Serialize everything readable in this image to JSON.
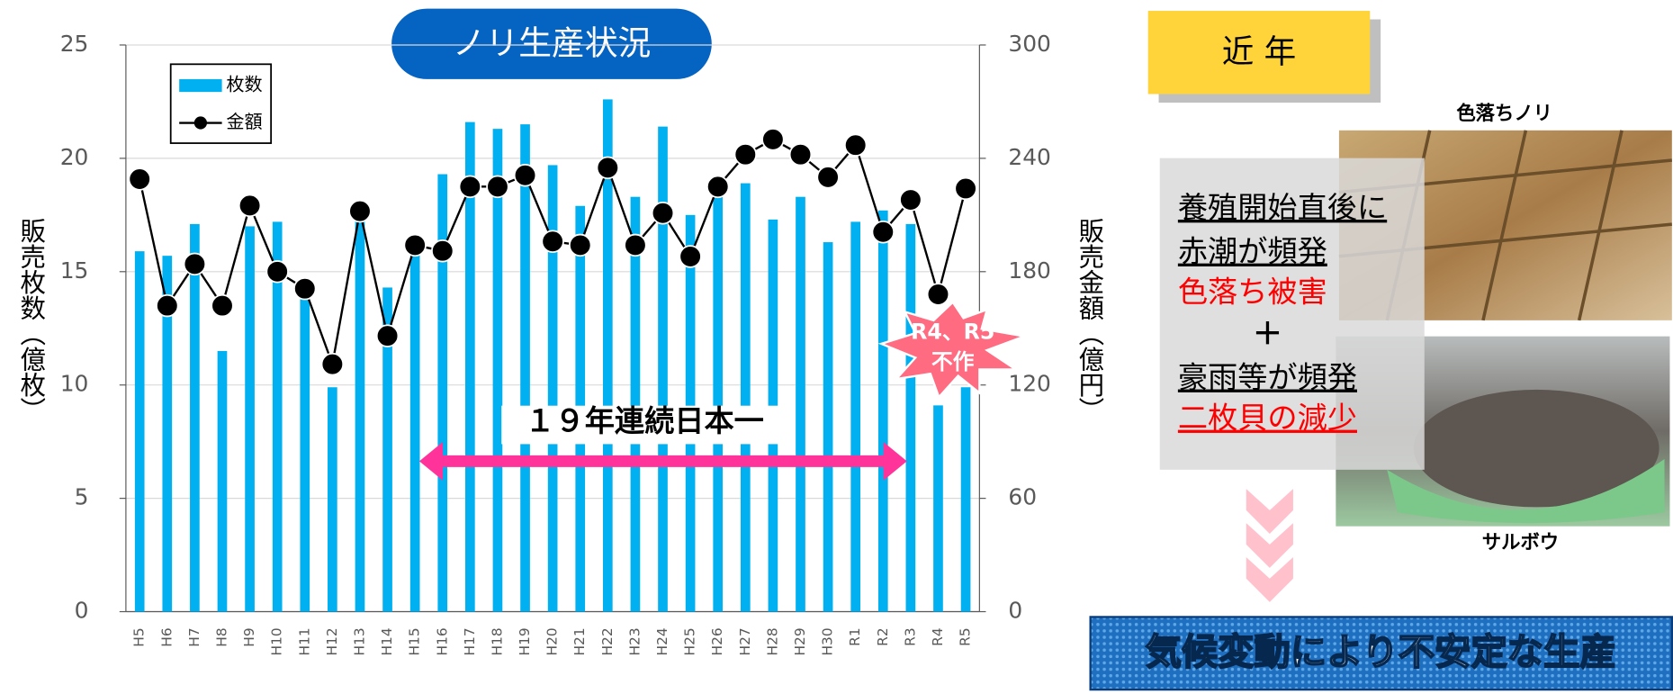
{
  "chart_data": {
    "type": "bar-line",
    "title": "ノリ生産状況",
    "y_label": "販売枚数（億枚）",
    "y2_label": "販売金額（億円）",
    "categories": [
      "H5",
      "H6",
      "H7",
      "H8",
      "H9",
      "H10",
      "H11",
      "H12",
      "H13",
      "H14",
      "H15",
      "H16",
      "H17",
      "H18",
      "H19",
      "H20",
      "H21",
      "H22",
      "H23",
      "H24",
      "H25",
      "H26",
      "H27",
      "H28",
      "H29",
      "H30",
      "R1",
      "R2",
      "R3",
      "R4",
      "R5"
    ],
    "series": [
      {
        "name": "枚数",
        "type": "bar",
        "color": "#00b0f0",
        "axis": "y",
        "values": [
          15.9,
          15.7,
          17.1,
          11.5,
          17.0,
          17.2,
          14.3,
          9.9,
          17.3,
          14.3,
          15.8,
          19.3,
          21.6,
          21.3,
          21.5,
          19.7,
          17.9,
          22.6,
          18.3,
          21.4,
          17.5,
          18.4,
          18.9,
          17.3,
          18.3,
          16.3,
          17.2,
          17.7,
          17.1,
          9.1,
          9.9
        ]
      },
      {
        "name": "金額",
        "type": "line",
        "color": "#000000",
        "axis": "y2",
        "values": [
          229,
          162,
          184,
          162,
          215,
          180,
          171,
          131,
          212,
          146,
          194,
          191,
          225,
          225,
          231,
          196,
          194,
          235,
          194,
          211,
          188,
          225,
          242,
          250,
          242,
          230,
          247,
          201,
          218,
          168,
          224
        ]
      }
    ],
    "ylim": [
      0,
      25
    ],
    "yticks": [
      0,
      5,
      10,
      15,
      20,
      25
    ],
    "y2lim": [
      0,
      300
    ],
    "y2ticks": [
      0,
      60,
      120,
      180,
      240,
      300
    ],
    "grid": true,
    "annotations": [
      "１９年連続日本一",
      "R4、R5",
      "不作"
    ]
  },
  "side_panel": {
    "heading": "近 年",
    "photo1_caption": "色落ちノリ",
    "photo2_caption": "サルボウ",
    "lines": [
      "養殖開始直後に",
      "赤潮が頻発",
      "色落ち被害",
      "＋",
      "豪雨等が頻発",
      "二枚貝の減少"
    ],
    "conclusion": "気候変動により不安定な生産"
  }
}
